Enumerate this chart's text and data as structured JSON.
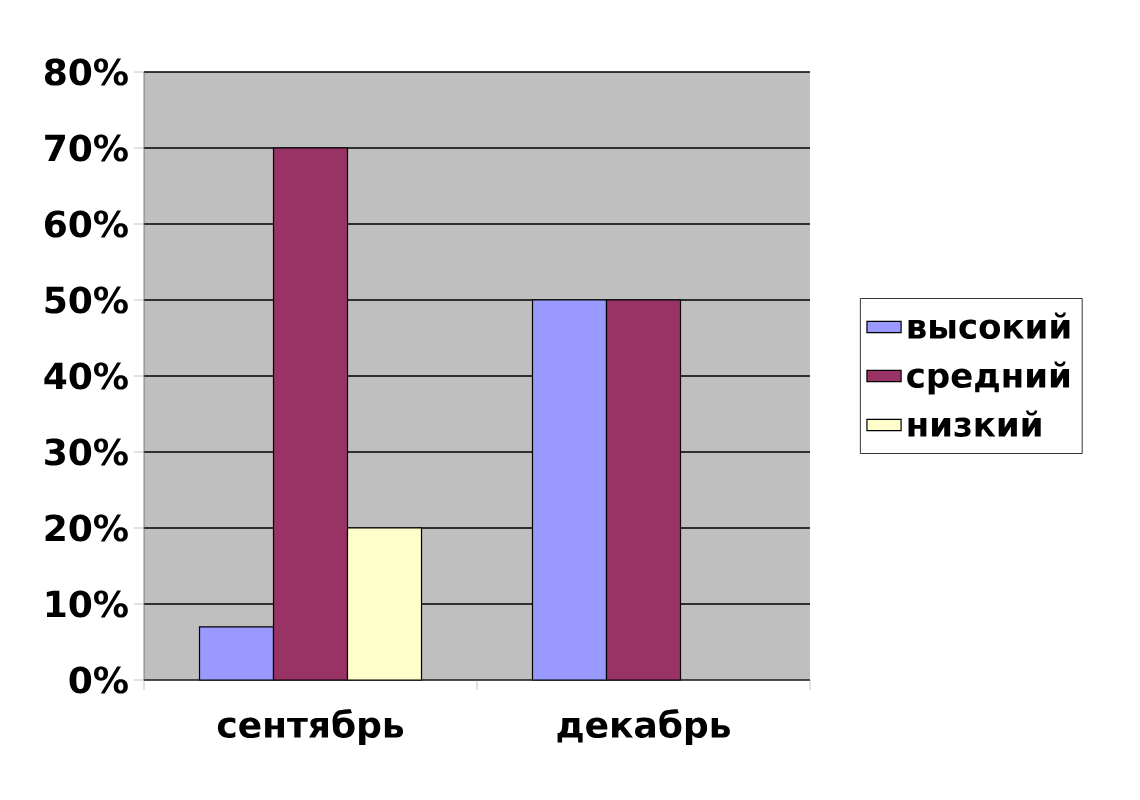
{
  "chart_data": {
    "type": "bar",
    "categories": [
      "сентябрь",
      "декабрь"
    ],
    "series": [
      {
        "name": "высокий",
        "color": "#9999ff",
        "values": [
          7,
          50
        ]
      },
      {
        "name": "средний",
        "color": "#993366",
        "values": [
          70,
          50
        ]
      },
      {
        "name": "низкий",
        "color": "#ffffcc",
        "values": [
          20,
          null
        ]
      }
    ],
    "ylim": [
      0,
      80
    ],
    "yticks": [
      {
        "value": 0,
        "label": "0%"
      },
      {
        "value": 10,
        "label": "10%"
      },
      {
        "value": 20,
        "label": "20%"
      },
      {
        "value": 30,
        "label": "30%"
      },
      {
        "value": 40,
        "label": "40%"
      },
      {
        "value": 50,
        "label": "50%"
      },
      {
        "value": 60,
        "label": "60%"
      },
      {
        "value": 70,
        "label": "70%"
      },
      {
        "value": 80,
        "label": "80%"
      }
    ],
    "grid": "y",
    "legend": "right"
  }
}
